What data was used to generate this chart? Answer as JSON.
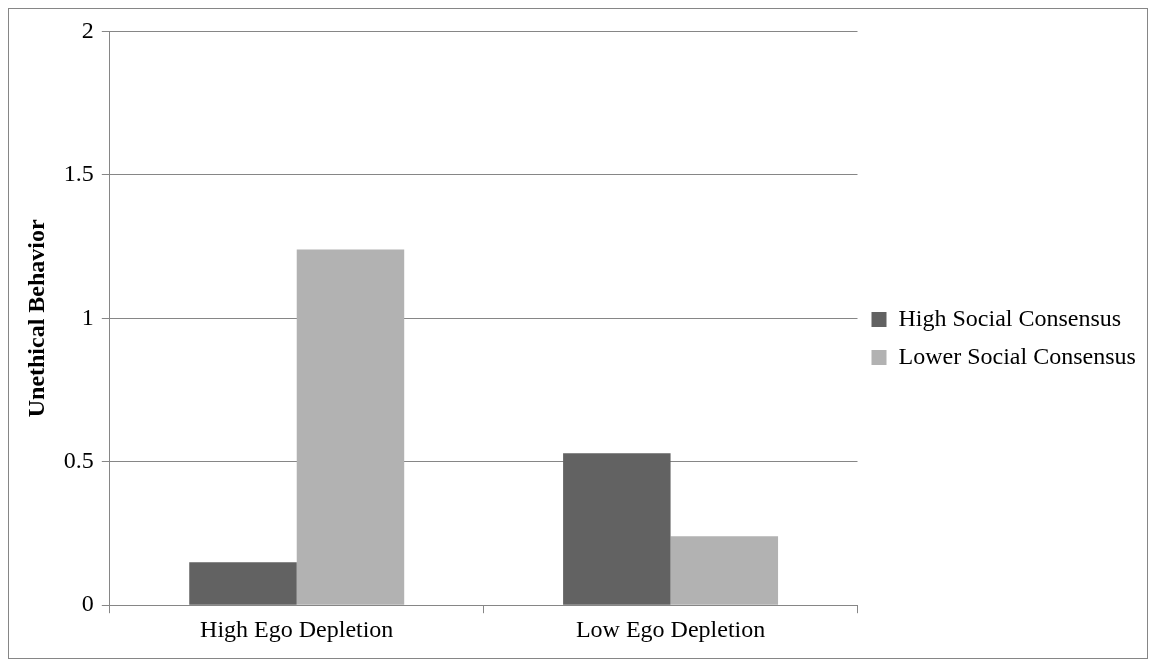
{
  "chart_data": {
    "type": "bar",
    "ylabel": "Unethical Behavior",
    "categories": [
      "High Ego Depletion",
      "Low Ego Depletion"
    ],
    "series": [
      {
        "name": "High Social Consensus",
        "color": "#626262",
        "values": [
          0.15,
          0.53
        ]
      },
      {
        "name": "Lower Social Consensus",
        "color": "#b2b2b2",
        "values": [
          1.24,
          0.24
        ]
      }
    ],
    "ylim": [
      0,
      2
    ],
    "yticks": [
      0,
      0.5,
      1,
      1.5,
      2
    ],
    "grid": "y",
    "legend": "right"
  }
}
